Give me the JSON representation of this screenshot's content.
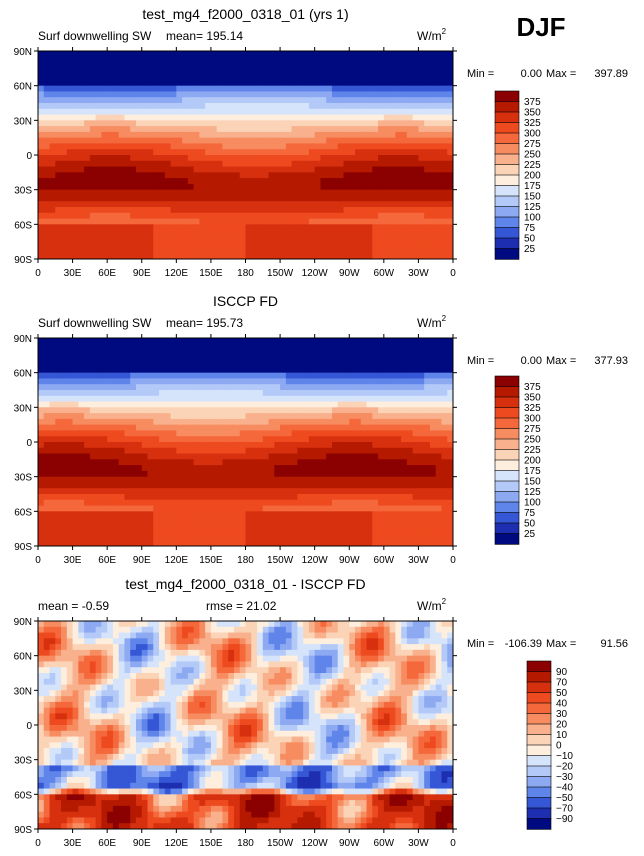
{
  "season": "DJF",
  "lat_ticks": [
    "90N",
    "60N",
    "30N",
    "0",
    "30S",
    "60S",
    "90S"
  ],
  "lon_ticks": [
    "0",
    "30E",
    "60E",
    "90E",
    "120E",
    "150E",
    "180",
    "150W",
    "120W",
    "90W",
    "60W",
    "30W",
    "0"
  ],
  "chart_data": [
    {
      "type": "heatmap",
      "title": "test_mg4_f2000_0318_01 (yrs 1)",
      "variable": "Surf downwelling SW",
      "mean_label": "mean= 195.14",
      "rmse_label": "",
      "units": "W/m",
      "units_exp": "2",
      "minmax": {
        "min_label": "Min =",
        "min": "0.00",
        "max_label": "Max =",
        "max": "397.89"
      },
      "legend_levels": [
        "375",
        "350",
        "325",
        "300",
        "275",
        "250",
        "225",
        "200",
        "175",
        "150",
        "125",
        "100",
        "75",
        "50",
        "25"
      ],
      "legend_colors": [
        "#8b0000",
        "#b51a00",
        "#d7300f",
        "#ee4a1f",
        "#f4683b",
        "#f78c61",
        "#f9b08c",
        "#fbd4b8",
        "#fdeede",
        "#d6e4fb",
        "#b3c9f7",
        "#8da9f2",
        "#5f84ea",
        "#3557d6",
        "#1d2fb0",
        "#000a80"
      ],
      "xlim": [
        0,
        360
      ],
      "ylim": [
        -90,
        90
      ]
    },
    {
      "type": "heatmap",
      "title": "ISCCP FD",
      "variable": "Surf downwelling SW",
      "mean_label": "mean= 195.73",
      "rmse_label": "",
      "units": "W/m",
      "units_exp": "2",
      "minmax": {
        "min_label": "Min =",
        "min": "0.00",
        "max_label": "Max =",
        "max": "377.93"
      },
      "legend_levels": [
        "375",
        "350",
        "325",
        "300",
        "275",
        "250",
        "225",
        "200",
        "175",
        "150",
        "125",
        "100",
        "75",
        "50",
        "25"
      ],
      "legend_colors": [
        "#8b0000",
        "#b51a00",
        "#d7300f",
        "#ee4a1f",
        "#f4683b",
        "#f78c61",
        "#f9b08c",
        "#fbd4b8",
        "#fdeede",
        "#d6e4fb",
        "#b3c9f7",
        "#8da9f2",
        "#5f84ea",
        "#3557d6",
        "#1d2fb0",
        "#000a80"
      ],
      "xlim": [
        0,
        360
      ],
      "ylim": [
        -90,
        90
      ]
    },
    {
      "type": "heatmap",
      "title": "test_mg4_f2000_0318_01 - ISCCP FD",
      "variable": "",
      "mean_label": "mean =  -0.59",
      "rmse_label": "rmse =  21.02",
      "units": "W/m",
      "units_exp": "2",
      "minmax": {
        "min_label": "Min =",
        "min": "-106.39",
        "max_label": "Max =",
        "max": "91.56"
      },
      "legend_levels": [
        "90",
        "70",
        "50",
        "40",
        "30",
        "20",
        "10",
        "0",
        "−10",
        "−20",
        "−30",
        "−40",
        "−50",
        "−70",
        "−90"
      ],
      "legend_colors": [
        "#8b0000",
        "#b51a00",
        "#d7300f",
        "#ee4a1f",
        "#f4683b",
        "#f78c61",
        "#f9b08c",
        "#fbd4b8",
        "#fdeede",
        "#d6e4fb",
        "#b3c9f7",
        "#8da9f2",
        "#5f84ea",
        "#3557d6",
        "#1d2fb0",
        "#000a80"
      ],
      "xlim": [
        0,
        360
      ],
      "ylim": [
        -90,
        90
      ]
    }
  ]
}
